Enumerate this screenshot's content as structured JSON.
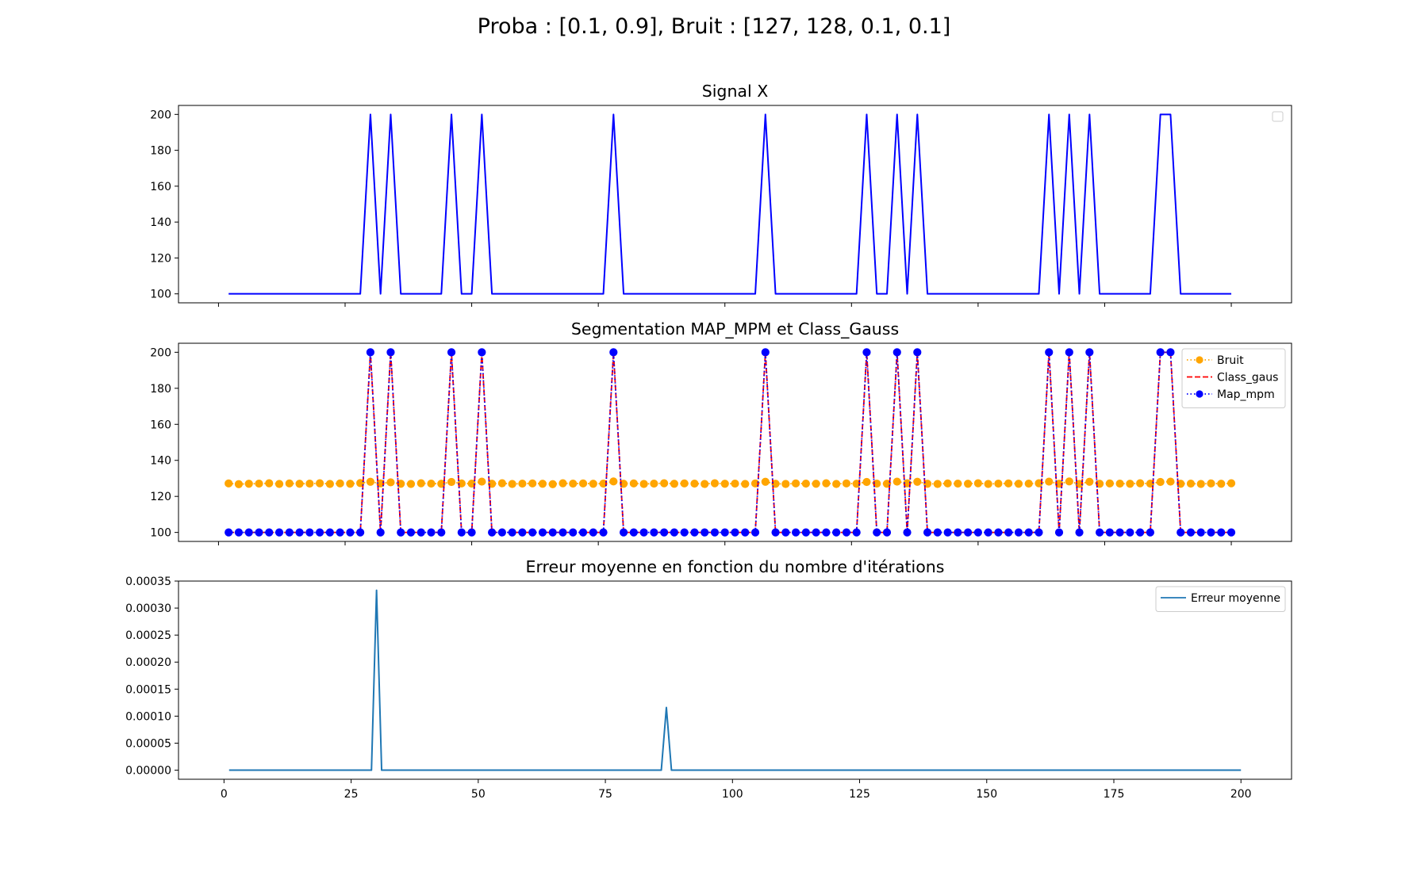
{
  "figure": {
    "suptitle": "Proba : [0.1, 0.9], Bruit : [127, 128, 0.1, 0.1]"
  },
  "chart_data": [
    {
      "type": "line",
      "title": "Signal X",
      "xlabel": "",
      "ylabel": "",
      "x_range": [
        1,
        100
      ],
      "xlim": [
        -3.95,
        105.95
      ],
      "ylim": [
        95,
        205
      ],
      "yticks": [
        100,
        120,
        140,
        160,
        180,
        200
      ],
      "xticks_shown": false,
      "legend": {
        "placement": "upper right",
        "entries": []
      },
      "grid": false,
      "series": [
        {
          "color": "#0000ff",
          "linestyle": "solid",
          "marker": "none",
          "values": [
            100,
            100,
            100,
            100,
            100,
            100,
            100,
            100,
            100,
            100,
            100,
            100,
            100,
            100,
            200,
            100,
            200,
            100,
            100,
            100,
            100,
            100,
            200,
            100,
            100,
            200,
            100,
            100,
            100,
            100,
            100,
            100,
            100,
            100,
            100,
            100,
            100,
            100,
            200,
            100,
            100,
            100,
            100,
            100,
            100,
            100,
            100,
            100,
            100,
            100,
            100,
            100,
            100,
            200,
            100,
            100,
            100,
            100,
            100,
            100,
            100,
            100,
            100,
            200,
            100,
            100,
            200,
            100,
            200,
            100,
            100,
            100,
            100,
            100,
            100,
            100,
            100,
            100,
            100,
            100,
            100,
            200,
            100,
            200,
            100,
            200,
            100,
            100,
            100,
            100,
            100,
            100,
            200,
            200,
            100,
            100,
            100,
            100,
            100,
            100
          ]
        }
      ]
    },
    {
      "type": "line",
      "title": "Segmentation MAP_MPM et Class_Gauss",
      "xlabel": "",
      "ylabel": "",
      "x_range": [
        1,
        100
      ],
      "xlim": [
        -3.95,
        105.95
      ],
      "ylim": [
        95,
        205
      ],
      "yticks": [
        100,
        120,
        140,
        160,
        180,
        200
      ],
      "xticks_shown": false,
      "legend": {
        "placement": "upper right"
      },
      "grid": false,
      "series": [
        {
          "name": "Bruit",
          "color": "#ffa500",
          "linestyle": "dotted",
          "marker": "circle",
          "values": [
            127.2,
            126.8,
            127.0,
            127.1,
            127.3,
            126.9,
            127.2,
            127.0,
            127.1,
            127.3,
            126.9,
            127.2,
            127.0,
            127.4,
            128.1,
            127.2,
            127.8,
            127.0,
            126.9,
            127.3,
            127.1,
            127.0,
            128.0,
            127.2,
            127.1,
            128.2,
            127.0,
            127.3,
            126.9,
            127.1,
            127.2,
            127.0,
            126.8,
            127.3,
            127.1,
            127.2,
            127.0,
            127.1,
            128.3,
            127.0,
            127.2,
            126.9,
            127.1,
            127.3,
            127.0,
            127.2,
            127.1,
            126.9,
            127.3,
            127.0,
            127.1,
            126.9,
            127.2,
            128.1,
            127.0,
            126.9,
            127.2,
            127.1,
            127.0,
            127.3,
            126.9,
            127.2,
            127.0,
            128.0,
            127.1,
            127.0,
            128.2,
            127.3,
            128.1,
            127.0,
            126.9,
            127.2,
            127.1,
            127.0,
            127.3,
            126.9,
            127.1,
            127.2,
            127.0,
            127.1,
            127.3,
            128.2,
            127.0,
            128.3,
            126.9,
            128.1,
            127.0,
            127.2,
            127.1,
            127.0,
            127.3,
            127.1,
            128.0,
            128.2,
            127.0,
            127.1,
            126.9,
            127.2,
            127.0,
            127.3
          ]
        },
        {
          "name": "Class_gaus",
          "color": "#ff0000",
          "linestyle": "dashed",
          "marker": "none",
          "values": [
            100,
            100,
            100,
            100,
            100,
            100,
            100,
            100,
            100,
            100,
            100,
            100,
            100,
            100,
            200,
            100,
            200,
            100,
            100,
            100,
            100,
            100,
            200,
            100,
            100,
            200,
            100,
            100,
            100,
            100,
            100,
            100,
            100,
            100,
            100,
            100,
            100,
            100,
            200,
            100,
            100,
            100,
            100,
            100,
            100,
            100,
            100,
            100,
            100,
            100,
            100,
            100,
            100,
            200,
            100,
            100,
            100,
            100,
            100,
            100,
            100,
            100,
            100,
            200,
            100,
            100,
            200,
            100,
            200,
            100,
            100,
            100,
            100,
            100,
            100,
            100,
            100,
            100,
            100,
            100,
            100,
            200,
            100,
            200,
            100,
            200,
            100,
            100,
            100,
            100,
            100,
            100,
            200,
            200,
            100,
            100,
            100,
            100,
            100,
            100
          ]
        },
        {
          "name": "Map_mpm",
          "color": "#0000ff",
          "linestyle": "dotted",
          "marker": "circle",
          "values": [
            100,
            100,
            100,
            100,
            100,
            100,
            100,
            100,
            100,
            100,
            100,
            100,
            100,
            100,
            200,
            100,
            200,
            100,
            100,
            100,
            100,
            100,
            200,
            100,
            100,
            200,
            100,
            100,
            100,
            100,
            100,
            100,
            100,
            100,
            100,
            100,
            100,
            100,
            200,
            100,
            100,
            100,
            100,
            100,
            100,
            100,
            100,
            100,
            100,
            100,
            100,
            100,
            100,
            200,
            100,
            100,
            100,
            100,
            100,
            100,
            100,
            100,
            100,
            200,
            100,
            100,
            200,
            100,
            200,
            100,
            100,
            100,
            100,
            100,
            100,
            100,
            100,
            100,
            100,
            100,
            100,
            200,
            100,
            200,
            100,
            200,
            100,
            100,
            100,
            100,
            100,
            100,
            200,
            200,
            100,
            100,
            100,
            100,
            100,
            100
          ]
        }
      ]
    },
    {
      "type": "line",
      "title": "Erreur moyenne en fonction du nombre d'itérations",
      "xlabel": "",
      "ylabel": "",
      "x_range": [
        1,
        200
      ],
      "xlim": [
        -8.95,
        209.95
      ],
      "ylim": [
        -1.68e-05,
        0.00035
      ],
      "xticks": [
        0,
        25,
        50,
        75,
        100,
        125,
        150,
        175,
        200
      ],
      "yticks": [
        0.0,
        5e-05,
        0.0001,
        0.00015,
        0.0002,
        0.00025,
        0.0003,
        0.00035
      ],
      "ytick_labels": [
        "0.00000",
        "0.00005",
        "0.00010",
        "0.00015",
        "0.00020",
        "0.00025",
        "0.00030",
        "0.00035"
      ],
      "legend": {
        "placement": "upper right"
      },
      "grid": false,
      "series": [
        {
          "name": "Erreur moyenne",
          "color": "#1f77b4",
          "linestyle": "solid",
          "marker": "none",
          "spikes": [
            {
              "x": 30,
              "y": 0.000333
            },
            {
              "x": 87,
              "y": 0.000116
            }
          ],
          "baseline": 0.0
        }
      ]
    }
  ]
}
